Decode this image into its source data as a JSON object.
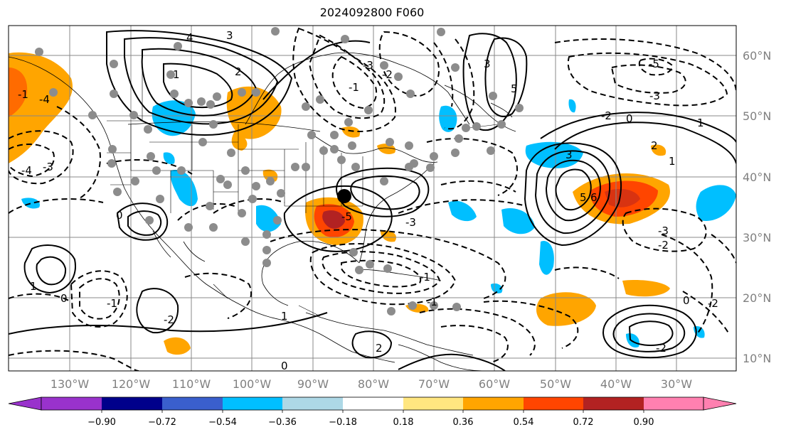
{
  "title": "2024092800 F060",
  "map": {
    "lon_labels": [
      "130°W",
      "120°W",
      "110°W",
      "100°W",
      "90°W",
      "80°W",
      "70°W",
      "60°W",
      "50°W",
      "40°W",
      "30°W"
    ],
    "lat_labels": [
      "60°N",
      "50°N",
      "40°N",
      "30°N",
      "20°N",
      "10°N"
    ],
    "contour_labels": [
      "4",
      "3",
      "2",
      "1",
      "0",
      "-1",
      "-2",
      "-3",
      "-4",
      "-5",
      "5",
      "6",
      "3",
      "-3",
      "-2",
      "-1",
      "1",
      "2",
      "-2",
      "-3",
      "-1",
      "1",
      "0",
      "-1",
      "2",
      "-2",
      "3",
      "0",
      "1",
      "-5",
      "5",
      "-4",
      "-3",
      "-2",
      "1",
      "0",
      "-2",
      "-3",
      "-1",
      "0"
    ],
    "colors": {
      "orange": "#ffa500",
      "red_orange": "#ff4500",
      "firebrick": "#b22222",
      "deep_sky_blue": "#00bfff",
      "light_blue": "#add8e6",
      "station_gray": "#8c8c8c"
    }
  },
  "colorbar": {
    "ticks": [
      "−0.90",
      "−0.72",
      "−0.54",
      "−0.36",
      "−0.18",
      "0.18",
      "0.36",
      "0.54",
      "0.72",
      "0.90"
    ],
    "colors": [
      "#9932cc",
      "#00008b",
      "#3a5fcd",
      "#00bfff",
      "#add8e6",
      "#ffffff",
      "#ffe680",
      "#ffa500",
      "#ff4500",
      "#b22222",
      "#ff80b0"
    ]
  }
}
